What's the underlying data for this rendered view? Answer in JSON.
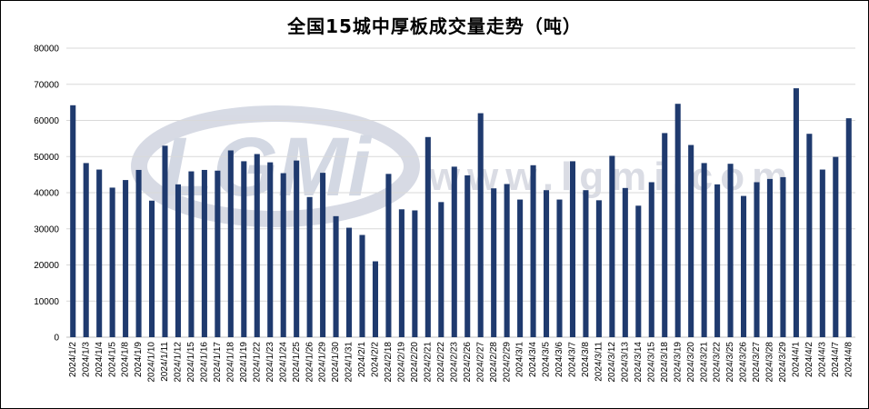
{
  "chart_data": {
    "type": "bar",
    "title": "全国15城中厚板成交量走势（吨）",
    "xlabel": "",
    "ylabel": "",
    "ylim": [
      0,
      80000
    ],
    "yticks": [
      0,
      10000,
      20000,
      30000,
      40000,
      50000,
      60000,
      70000,
      80000
    ],
    "grid": true,
    "legend": "none",
    "bar_color": "#1f3a6e",
    "categories": [
      "2024/1/2",
      "2024/1/3",
      "2024/1/4",
      "2024/1/5",
      "2024/1/8",
      "2024/1/9",
      "2024/1/10",
      "2024/1/11",
      "2024/1/12",
      "2024/1/15",
      "2024/1/16",
      "2024/1/17",
      "2024/1/18",
      "2024/1/19",
      "2024/1/22",
      "2024/1/23",
      "2024/1/24",
      "2024/1/25",
      "2024/1/26",
      "2024/1/29",
      "2024/1/30",
      "2024/1/31",
      "2024/2/1",
      "2024/2/2",
      "2024/2/18",
      "2024/2/19",
      "2024/2/20",
      "2024/2/21",
      "2024/2/22",
      "2024/2/23",
      "2024/2/26",
      "2024/2/27",
      "2024/2/28",
      "2024/2/29",
      "2024/3/1",
      "2024/3/4",
      "2024/3/5",
      "2024/3/6",
      "2024/3/7",
      "2024/3/8",
      "2024/3/11",
      "2024/3/12",
      "2024/3/13",
      "2024/3/14",
      "2024/3/15",
      "2024/3/18",
      "2024/3/19",
      "2024/3/20",
      "2024/3/21",
      "2024/3/22",
      "2024/3/25",
      "2024/3/26",
      "2024/3/27",
      "2024/3/28",
      "2024/3/29",
      "2024/4/1",
      "2024/4/2",
      "2024/4/3",
      "2024/4/7",
      "2024/4/8"
    ],
    "values": [
      64200,
      48200,
      46400,
      41400,
      43500,
      46300,
      37800,
      53000,
      42300,
      45900,
      46300,
      46100,
      51700,
      48700,
      50700,
      48400,
      45400,
      48900,
      38800,
      45500,
      33500,
      30300,
      28300,
      21000,
      45200,
      35400,
      35100,
      55400,
      37400,
      47200,
      44800,
      62000,
      41200,
      42400,
      38100,
      47600,
      40700,
      38100,
      48700,
      40700,
      37900,
      50200,
      41300,
      36400,
      42900,
      56500,
      64600,
      53200,
      48200,
      42300,
      48000,
      39100,
      42900,
      43800,
      44300,
      68900,
      56300,
      46400,
      49900,
      60600
    ]
  },
  "watermark": {
    "logo_text": "LGMi",
    "url_text": "www.lgmi.com",
    "color": "#c9cedd"
  }
}
